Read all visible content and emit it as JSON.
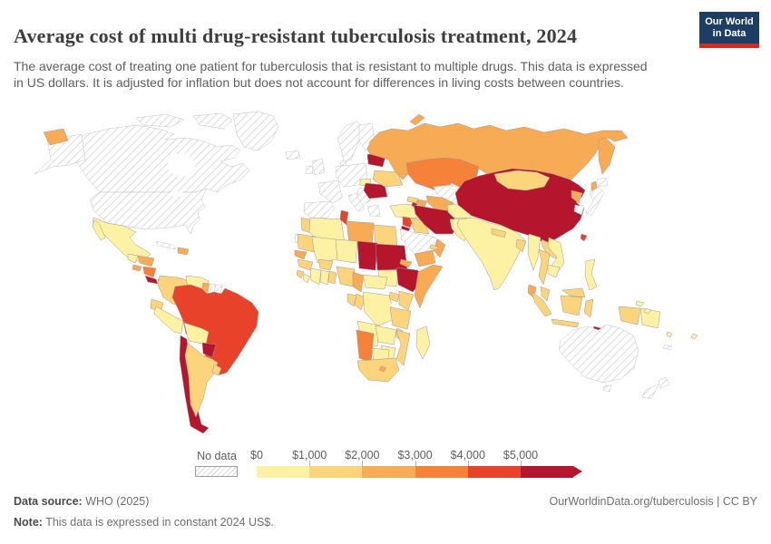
{
  "header": {
    "title": "Average cost of multi drug-resistant tuberculosis treatment, 2024",
    "subtitle": "The average cost of treating one patient for tuberculosis that is resistant to multiple drugs. This data is expressed in US dollars. It is adjusted for inflation but does not account for differences in living costs between countries.",
    "logo": {
      "line1": "Our World",
      "line2": "in Data",
      "bg_color": "#1d3d63",
      "accent_color": "#d42b21"
    }
  },
  "legend": {
    "no_data_label": "No data",
    "ticks": [
      "$0",
      "$1,000",
      "$2,000",
      "$3,000",
      "$4,000",
      "$5,000"
    ]
  },
  "footer": {
    "source_label": "Data source:",
    "source_value": " WHO (2025)",
    "note_label": "Note:",
    "note_value": " This data is expressed in constant 2024 US$.",
    "link": "OurWorldinData.org/tuberculosis | CC BY"
  },
  "chart_data": {
    "type": "choropleth",
    "title": "Average cost of multi drug-resistant tuberculosis treatment, 2024",
    "year": "2024",
    "unit": "constant 2024 US$",
    "bins": [
      "$0–$1,000",
      "$1,000–$2,000",
      "$2,000–$3,000",
      "$3,000–$4,000",
      "$4,000–$5,000",
      "$5,000+"
    ],
    "bin_colors": [
      "#fdf2a3",
      "#fbd47c",
      "#f8ab55",
      "#f58238",
      "#e8432a",
      "#b5152d"
    ],
    "no_data_style": "gray diagonal hatching",
    "country_bins": {
      "United States": "No data",
      "Canada": "No data",
      "Greenland": "No data",
      "Iceland": "No data",
      "Cuba": "No data",
      "Suriname": "No data",
      "French Guiana": "No data",
      "Norway": "No data",
      "Sweden": "No data",
      "Finland": "No data",
      "Denmark": "No data",
      "United Kingdom": "No data",
      "Ireland": "No data",
      "France": "No data",
      "Spain": "No data",
      "Portugal": "No data",
      "Germany": "No data",
      "Poland": "No data",
      "Italy": "No data",
      "Greece": "No data",
      "Croatia": "No data",
      "Austria": "No data",
      "Switzerland": "No data",
      "Saudi Arabia": "No data",
      "Uzbekistan": "No data",
      "Japan": "No data",
      "South Korea": "No data",
      "Australia": "No data",
      "New Zealand": "No data",
      "Western Sahara": "No data",
      "New Caledonia": "No data",
      "Mexico": "$0–$1,000",
      "Guatemala": "$0–$1,000",
      "Honduras": "$2,000–$3,000",
      "El Salvador": "$2,000–$3,000",
      "Nicaragua": "$3,000–$4,000",
      "Costa Rica": "$5,000+",
      "Panama": "$1,000–$2,000",
      "Haiti": "$2,000–$3,000",
      "Dominican Republic": "$2,000–$3,000",
      "Colombia": "$1,000–$2,000",
      "Venezuela": "$0–$1,000",
      "Guyana": "$2,000–$3,000",
      "Ecuador": "$1,000–$2,000",
      "Peru": "$0–$1,000",
      "Brazil": "$4,000–$5,000",
      "Bolivia": "$0–$1,000",
      "Paraguay": "$5,000+",
      "Chile": "$5,000+",
      "Argentina": "$1,000–$2,000",
      "Uruguay": "$1,000–$2,000",
      "Russia": "$2,000–$3,000",
      "Belarus": "$5,000+",
      "Ukraine": "$1,000–$2,000",
      "Hungary": "$0–$1,000",
      "Romania": "$5,000+",
      "Bulgaria": "$5,000+",
      "Moldova": "$2,000–$3,000",
      "Turkey": "$0–$1,000",
      "Georgia": "$1,000–$2,000",
      "Azerbaijan": "$2,000–$3,000",
      "Armenia": "$5,000+",
      "Kazakhstan": "$3,000–$4,000",
      "Turkmenistan": "$2,000–$3,000",
      "Kyrgyzstan": "$2,000–$3,000",
      "Tajikistan": "$2,000–$3,000",
      "China": "$5,000+",
      "Mongolia": "$1,000–$2,000",
      "North Korea": "$2,000–$3,000",
      "Taiwan": "$4,000–$5,000",
      "India": "$0–$1,000",
      "Pakistan": "$0–$1,000",
      "Afghanistan": "$0–$1,000",
      "Nepal": "$1,000–$2,000",
      "Bangladesh": "$1,000–$2,000",
      "Sri Lanka": "$2,000–$3,000",
      "Myanmar": "$0–$1,000",
      "Thailand": "$1,000–$2,000",
      "Laos": "$1,000–$2,000",
      "Vietnam": "$0–$1,000",
      "Cambodia": "$0–$1,000",
      "Malaysia": "$1,000–$2,000",
      "Indonesia": "$1,000–$2,000",
      "Philippines": "$0–$1,000",
      "Papua New Guinea": "$0–$1,000",
      "Timor-Leste": "$5,000+",
      "Solomon Islands": "$0–$1,000",
      "Fiji": "$0–$1,000",
      "Vanuatu": "$0–$1,000",
      "Iran": "$5,000+",
      "Iraq": "$1,000–$2,000",
      "Syria": "$4,000–$5,000",
      "Jordan": "$5,000+",
      "Yemen": "$2,000–$3,000",
      "Oman": "$2,000–$3,000",
      "United Arab Emirates": "$1,000–$2,000",
      "Egypt": "$1,000–$2,000",
      "Libya": "$2,000–$3,000",
      "Tunisia": "$4,000–$5,000",
      "Algeria": "$0–$1,000",
      "Morocco": "$1,000–$2,000",
      "Mauritania": "$1,000–$2,000",
      "Mali": "$0–$1,000",
      "Niger": "$0–$1,000",
      "Chad": "$5,000+",
      "Sudan": "$5,000+",
      "South Sudan": "$0–$1,000",
      "Eritrea": "$2,000–$3,000",
      "Ethiopia": "$5,000+",
      "Somalia": "$2,000–$3,000",
      "Senegal": "$2,000–$3,000",
      "Guinea": "$1,000–$2,000",
      "Sierra Leone": "$1,000–$2,000",
      "Liberia": "$0–$1,000",
      "Cote d'Ivoire": "$0–$1,000",
      "Ghana": "$0–$1,000",
      "Burkina Faso": "$1,000–$2,000",
      "Benin": "$1,000–$2,000",
      "Nigeria": "$1,000–$2,000",
      "Cameroon": "$2,000–$3,000",
      "Central African Republic": "$0–$1,000",
      "Gabon": "$1,000–$2,000",
      "Congo": "$1,000–$2,000",
      "DR Congo": "$0–$1,000",
      "Uganda": "$1,000–$2,000",
      "Kenya": "$1,000–$2,000",
      "Tanzania": "$1,000–$2,000",
      "Angola": "$0–$1,000",
      "Zambia": "$0–$1,000",
      "Malawi": "$1,000–$2,000",
      "Mozambique": "$1,000–$2,000",
      "Zimbabwe": "$0–$1,000",
      "Namibia": "$3,000–$4,000",
      "Botswana": "$0–$1,000",
      "South Africa": "$1,000–$2,000",
      "Lesotho": "$2,000–$3,000",
      "Madagascar": "$0–$1,000"
    }
  }
}
